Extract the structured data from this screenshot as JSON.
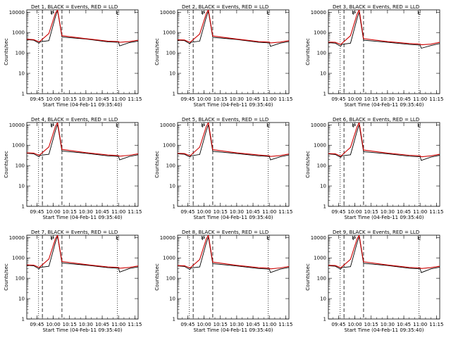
{
  "chart_data": [
    {
      "type": "line",
      "title": "Det 1, BLACK = Events, RED = LLD",
      "xlabel": "Start Time (04-Feb-11 09:35:40)",
      "ylabel": "Counts/sec",
      "x_ticks": [
        "09:45",
        "10:00",
        "10:15",
        "10:30",
        "10:45",
        "11:00",
        "11:15"
      ],
      "y_ticks": [
        "1",
        "10",
        "100",
        "1000",
        "10000"
      ],
      "xlim": [
        "09:35:40",
        "11:18:00"
      ],
      "ylim": [
        1,
        13000
      ],
      "y_scale": "log",
      "markers": [
        "P",
        "L"
      ],
      "colors": {
        "events": "#000000",
        "lld": "#cc0000"
      },
      "series": [
        {
          "name": "Events",
          "x": [
            "09:35:40",
            "09:42",
            "09:47",
            "09:48",
            "09:56",
            "10:02",
            "10:04",
            "10:08",
            "10:30",
            "10:50",
            "11:00",
            "11:01",
            "11:10",
            "11:18"
          ],
          "y": [
            450,
            420,
            300,
            350,
            400,
            6000,
            12000,
            600,
            480,
            350,
            330,
            220,
            320,
            380
          ]
        },
        {
          "name": "LLD",
          "x": [
            "09:35:40",
            "09:42",
            "09:47",
            "09:48",
            "09:56",
            "10:02",
            "10:04",
            "10:08",
            "10:30",
            "10:50",
            "11:00",
            "11:01",
            "11:10",
            "11:18"
          ],
          "y": [
            470,
            450,
            350,
            380,
            900,
            9000,
            13000,
            700,
            500,
            380,
            360,
            330,
            360,
            420
          ]
        }
      ]
    },
    {
      "type": "line",
      "title": "Det 2, BLACK = Events, RED = LLD",
      "xlabel": "Start Time (04-Feb-11 09:35:40)",
      "ylabel": "Counts/sec",
      "x_ticks": [
        "09:45",
        "10:00",
        "10:15",
        "10:30",
        "10:45",
        "11:00",
        "11:15"
      ],
      "y_ticks": [
        "1",
        "10",
        "100",
        "1000",
        "10000"
      ],
      "xlim": [
        "09:35:40",
        "11:18:00"
      ],
      "ylim": [
        1,
        13000
      ],
      "y_scale": "log",
      "markers": [
        "P",
        "L"
      ],
      "colors": {
        "events": "#000000",
        "lld": "#cc0000"
      },
      "series": [
        {
          "name": "Events",
          "x": [
            "09:35:40",
            "09:42",
            "09:47",
            "09:48",
            "09:56",
            "10:02",
            "10:04",
            "10:08",
            "10:30",
            "10:50",
            "11:00",
            "11:01",
            "11:10",
            "11:18"
          ],
          "y": [
            420,
            400,
            280,
            330,
            380,
            5500,
            11000,
            580,
            460,
            330,
            310,
            210,
            300,
            360
          ]
        },
        {
          "name": "LLD",
          "x": [
            "09:35:40",
            "09:42",
            "09:47",
            "09:48",
            "09:56",
            "10:02",
            "10:04",
            "10:08",
            "10:30",
            "10:50",
            "11:00",
            "11:01",
            "11:10",
            "11:18"
          ],
          "y": [
            440,
            430,
            330,
            360,
            850,
            8500,
            13000,
            680,
            480,
            360,
            340,
            310,
            340,
            400
          ]
        }
      ]
    },
    {
      "type": "line",
      "title": "Det 3, BLACK = Events, RED = LLD",
      "xlabel": "Start Time (04-Feb-11 09:35:40)",
      "ylabel": "Counts/sec",
      "x_ticks": [
        "09:45",
        "10:00",
        "10:15",
        "10:30",
        "10:45",
        "11:00",
        "11:15"
      ],
      "y_ticks": [
        "1",
        "10",
        "100",
        "1000",
        "10000"
      ],
      "xlim": [
        "09:35:40",
        "11:18:00"
      ],
      "ylim": [
        1,
        13000
      ],
      "y_scale": "log",
      "markers": [
        "P",
        "L"
      ],
      "colors": {
        "events": "#000000",
        "lld": "#cc0000"
      },
      "series": [
        {
          "name": "Events",
          "x": [
            "09:35:40",
            "09:42",
            "09:47",
            "09:48",
            "09:56",
            "10:02",
            "10:04",
            "10:08",
            "10:30",
            "10:50",
            "11:00",
            "11:01",
            "11:10",
            "11:18"
          ],
          "y": [
            320,
            300,
            210,
            260,
            300,
            4800,
            10000,
            420,
            330,
            260,
            240,
            170,
            230,
            290
          ]
        },
        {
          "name": "LLD",
          "x": [
            "09:35:40",
            "09:42",
            "09:47",
            "09:48",
            "09:56",
            "10:02",
            "10:04",
            "10:08",
            "10:30",
            "10:50",
            "11:00",
            "11:01",
            "11:10",
            "11:18"
          ],
          "y": [
            340,
            330,
            260,
            290,
            700,
            8000,
            13000,
            500,
            360,
            290,
            270,
            250,
            270,
            330
          ]
        }
      ]
    },
    {
      "type": "line",
      "title": "Det 4, BLACK = Events, RED = LLD",
      "xlabel": "Start Time (04-Feb-11 09:35:40)",
      "ylabel": "Counts/sec",
      "x_ticks": [
        "09:45",
        "10:00",
        "10:15",
        "10:30",
        "10:45",
        "11:00",
        "11:15"
      ],
      "y_ticks": [
        "1",
        "10",
        "100",
        "1000",
        "10000"
      ],
      "xlim": [
        "09:35:40",
        "11:18:00"
      ],
      "ylim": [
        1,
        13000
      ],
      "y_scale": "log",
      "markers": [
        "P",
        "L"
      ],
      "colors": {
        "events": "#000000",
        "lld": "#cc0000"
      },
      "series": [
        {
          "name": "Events",
          "x": [
            "09:35:40",
            "09:42",
            "09:47",
            "09:48",
            "09:56",
            "10:02",
            "10:04",
            "10:08",
            "10:30",
            "10:50",
            "11:00",
            "11:01",
            "11:10",
            "11:18"
          ],
          "y": [
            400,
            380,
            270,
            320,
            360,
            5200,
            10500,
            520,
            400,
            300,
            280,
            190,
            280,
            340
          ]
        },
        {
          "name": "LLD",
          "x": [
            "09:35:40",
            "09:42",
            "09:47",
            "09:48",
            "09:56",
            "10:02",
            "10:04",
            "10:08",
            "10:30",
            "10:50",
            "11:00",
            "11:01",
            "11:10",
            "11:18"
          ],
          "y": [
            420,
            410,
            320,
            350,
            820,
            8400,
            13000,
            620,
            430,
            330,
            310,
            290,
            320,
            380
          ]
        }
      ]
    },
    {
      "type": "line",
      "title": "Det 5, BLACK = Events, RED = LLD",
      "xlabel": "Start Time (04-Feb-11 09:35:40)",
      "ylabel": "Counts/sec",
      "x_ticks": [
        "09:45",
        "10:00",
        "10:15",
        "10:30",
        "10:45",
        "11:00",
        "11:15"
      ],
      "y_ticks": [
        "1",
        "10",
        "100",
        "1000",
        "10000"
      ],
      "xlim": [
        "09:35:40",
        "11:18:00"
      ],
      "ylim": [
        1,
        13000
      ],
      "y_scale": "log",
      "markers": [
        "P",
        "L"
      ],
      "colors": {
        "events": "#000000",
        "lld": "#cc0000"
      },
      "series": [
        {
          "name": "Events",
          "x": [
            "09:35:40",
            "09:42",
            "09:47",
            "09:48",
            "09:56",
            "10:02",
            "10:04",
            "10:08",
            "10:30",
            "10:50",
            "11:00",
            "11:01",
            "11:10",
            "11:18"
          ],
          "y": [
            380,
            360,
            260,
            300,
            350,
            5000,
            10000,
            500,
            390,
            300,
            280,
            190,
            270,
            330
          ]
        },
        {
          "name": "LLD",
          "x": [
            "09:35:40",
            "09:42",
            "09:47",
            "09:48",
            "09:56",
            "10:02",
            "10:04",
            "10:08",
            "10:30",
            "10:50",
            "11:00",
            "11:01",
            "11:10",
            "11:18"
          ],
          "y": [
            400,
            390,
            300,
            330,
            800,
            8200,
            13000,
            600,
            420,
            330,
            300,
            280,
            310,
            370
          ]
        }
      ]
    },
    {
      "type": "line",
      "title": "Det 6, BLACK = Events, RED = LLD",
      "xlabel": "Start Time (04-Feb-11 09:35:40)",
      "ylabel": "Counts/sec",
      "x_ticks": [
        "09:45",
        "10:00",
        "10:15",
        "10:30",
        "10:45",
        "11:00",
        "11:15"
      ],
      "y_ticks": [
        "1",
        "10",
        "100",
        "1000",
        "10000"
      ],
      "xlim": [
        "09:35:40",
        "11:18:00"
      ],
      "ylim": [
        1,
        13000
      ],
      "y_scale": "log",
      "markers": [
        "P",
        "L"
      ],
      "colors": {
        "events": "#000000",
        "lld": "#cc0000"
      },
      "series": [
        {
          "name": "Events",
          "x": [
            "09:35:40",
            "09:42",
            "09:47",
            "09:48",
            "09:56",
            "10:02",
            "10:04",
            "10:08",
            "10:30",
            "10:50",
            "11:00",
            "11:01",
            "11:10",
            "11:18"
          ],
          "y": [
            370,
            350,
            250,
            300,
            340,
            4900,
            10000,
            480,
            380,
            290,
            270,
            180,
            260,
            320
          ]
        },
        {
          "name": "LLD",
          "x": [
            "09:35:40",
            "09:42",
            "09:47",
            "09:48",
            "09:56",
            "10:02",
            "10:04",
            "10:08",
            "10:30",
            "10:50",
            "11:00",
            "11:01",
            "11:10",
            "11:18"
          ],
          "y": [
            390,
            380,
            290,
            320,
            780,
            8000,
            13000,
            580,
            410,
            320,
            300,
            270,
            300,
            360
          ]
        }
      ]
    },
    {
      "type": "line",
      "title": "Det 7, BLACK = Events, RED = LLD",
      "xlabel": "Start Time (04-Feb-11 09:35:40)",
      "ylabel": "Counts/sec",
      "x_ticks": [
        "09:45",
        "10:00",
        "10:15",
        "10:30",
        "10:45",
        "11:00",
        "11:15"
      ],
      "y_ticks": [
        "1",
        "10",
        "100",
        "1000",
        "10000"
      ],
      "xlim": [
        "09:35:40",
        "11:18:00"
      ],
      "ylim": [
        1,
        13000
      ],
      "y_scale": "log",
      "markers": [
        "P",
        "L"
      ],
      "colors": {
        "events": "#000000",
        "lld": "#cc0000"
      },
      "series": [
        {
          "name": "Events",
          "x": [
            "09:35:40",
            "09:42",
            "09:47",
            "09:48",
            "09:56",
            "10:02",
            "10:04",
            "10:08",
            "10:30",
            "10:50",
            "11:00",
            "11:01",
            "11:10",
            "11:18"
          ],
          "y": [
            430,
            410,
            290,
            340,
            390,
            5800,
            11500,
            560,
            440,
            330,
            310,
            200,
            300,
            360
          ]
        },
        {
          "name": "LLD",
          "x": [
            "09:35:40",
            "09:42",
            "09:47",
            "09:48",
            "09:56",
            "10:02",
            "10:04",
            "10:08",
            "10:30",
            "10:50",
            "11:00",
            "11:01",
            "11:10",
            "11:18"
          ],
          "y": [
            450,
            440,
            340,
            370,
            880,
            8800,
            13000,
            660,
            470,
            360,
            340,
            310,
            340,
            400
          ]
        }
      ]
    },
    {
      "type": "line",
      "title": "Det 8, BLACK = Events, RED = LLD",
      "xlabel": "Start Time (04-Feb-11 09:35:40)",
      "ylabel": "Counts/sec",
      "x_ticks": [
        "09:45",
        "10:00",
        "10:15",
        "10:30",
        "10:45",
        "11:00",
        "11:15"
      ],
      "y_ticks": [
        "1",
        "10",
        "100",
        "1000",
        "10000"
      ],
      "xlim": [
        "09:35:40",
        "11:18:00"
      ],
      "ylim": [
        1,
        13000
      ],
      "y_scale": "log",
      "markers": [
        "P",
        "L"
      ],
      "colors": {
        "events": "#000000",
        "lld": "#cc0000"
      },
      "series": [
        {
          "name": "Events",
          "x": [
            "09:35:40",
            "09:42",
            "09:47",
            "09:48",
            "09:56",
            "10:02",
            "10:04",
            "10:08",
            "10:30",
            "10:50",
            "11:00",
            "11:01",
            "11:10",
            "11:18"
          ],
          "y": [
            400,
            380,
            270,
            320,
            360,
            5300,
            10500,
            520,
            400,
            300,
            280,
            190,
            280,
            340
          ]
        },
        {
          "name": "LLD",
          "x": [
            "09:35:40",
            "09:42",
            "09:47",
            "09:48",
            "09:56",
            "10:02",
            "10:04",
            "10:08",
            "10:30",
            "10:50",
            "11:00",
            "11:01",
            "11:10",
            "11:18"
          ],
          "y": [
            420,
            410,
            320,
            350,
            830,
            8500,
            13000,
            620,
            430,
            330,
            310,
            290,
            320,
            380
          ]
        }
      ]
    },
    {
      "type": "line",
      "title": "Det 9, BLACK = Events, RED = LLD",
      "xlabel": "Start Time (04-Feb-11 09:35:40)",
      "ylabel": "Counts/sec",
      "x_ticks": [
        "09:45",
        "10:00",
        "10:15",
        "10:30",
        "10:45",
        "11:00",
        "11:15"
      ],
      "y_ticks": [
        "1",
        "10",
        "100",
        "1000",
        "10000"
      ],
      "xlim": [
        "09:35:40",
        "11:18:00"
      ],
      "ylim": [
        1,
        13000
      ],
      "y_scale": "log",
      "markers": [
        "P",
        "L"
      ],
      "colors": {
        "events": "#000000",
        "lld": "#cc0000"
      },
      "series": [
        {
          "name": "Events",
          "x": [
            "09:35:40",
            "09:42",
            "09:47",
            "09:48",
            "09:56",
            "10:02",
            "10:04",
            "10:08",
            "10:30",
            "10:50",
            "11:00",
            "11:01",
            "11:10",
            "11:18"
          ],
          "y": [
            410,
            390,
            280,
            330,
            370,
            5400,
            11000,
            540,
            420,
            310,
            290,
            190,
            290,
            350
          ]
        },
        {
          "name": "LLD",
          "x": [
            "09:35:40",
            "09:42",
            "09:47",
            "09:48",
            "09:56",
            "10:02",
            "10:04",
            "10:08",
            "10:30",
            "10:50",
            "11:00",
            "11:01",
            "11:10",
            "11:18"
          ],
          "y": [
            430,
            420,
            330,
            360,
            850,
            8600,
            13000,
            640,
            450,
            340,
            320,
            300,
            330,
            390
          ]
        }
      ]
    }
  ]
}
